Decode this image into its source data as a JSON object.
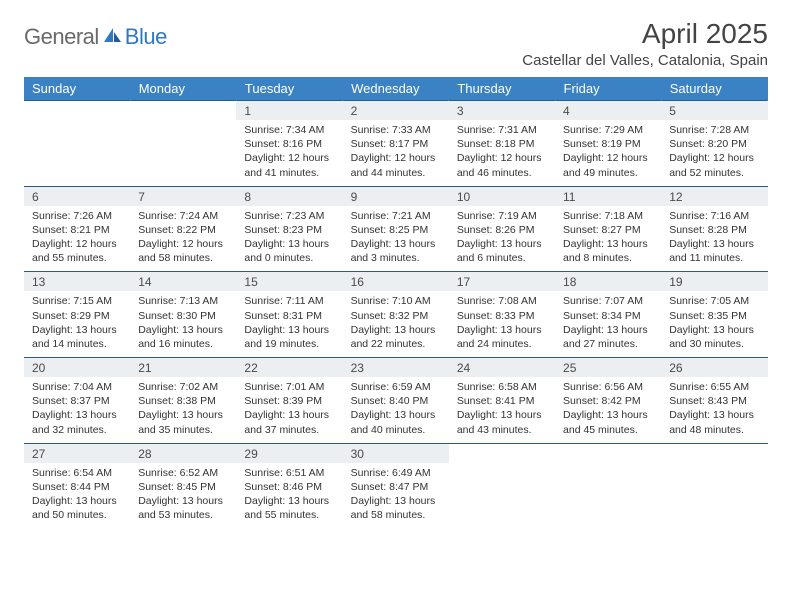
{
  "brand": {
    "part1": "General",
    "part2": "Blue"
  },
  "title": "April 2025",
  "location": "Castellar del Valles, Catalonia, Spain",
  "colors": {
    "header_bg": "#3b82c4",
    "header_text": "#ffffff",
    "daynum_bg": "#eceff1",
    "row_border": "#2a5a8a",
    "logo_gray": "#6a6a6a",
    "logo_blue": "#2f78c3"
  },
  "weekdays": [
    "Sunday",
    "Monday",
    "Tuesday",
    "Wednesday",
    "Thursday",
    "Friday",
    "Saturday"
  ],
  "weeks": [
    [
      null,
      null,
      {
        "n": "1",
        "sr": "Sunrise: 7:34 AM",
        "ss": "Sunset: 8:16 PM",
        "dl1": "Daylight: 12 hours",
        "dl2": "and 41 minutes."
      },
      {
        "n": "2",
        "sr": "Sunrise: 7:33 AM",
        "ss": "Sunset: 8:17 PM",
        "dl1": "Daylight: 12 hours",
        "dl2": "and 44 minutes."
      },
      {
        "n": "3",
        "sr": "Sunrise: 7:31 AM",
        "ss": "Sunset: 8:18 PM",
        "dl1": "Daylight: 12 hours",
        "dl2": "and 46 minutes."
      },
      {
        "n": "4",
        "sr": "Sunrise: 7:29 AM",
        "ss": "Sunset: 8:19 PM",
        "dl1": "Daylight: 12 hours",
        "dl2": "and 49 minutes."
      },
      {
        "n": "5",
        "sr": "Sunrise: 7:28 AM",
        "ss": "Sunset: 8:20 PM",
        "dl1": "Daylight: 12 hours",
        "dl2": "and 52 minutes."
      }
    ],
    [
      {
        "n": "6",
        "sr": "Sunrise: 7:26 AM",
        "ss": "Sunset: 8:21 PM",
        "dl1": "Daylight: 12 hours",
        "dl2": "and 55 minutes."
      },
      {
        "n": "7",
        "sr": "Sunrise: 7:24 AM",
        "ss": "Sunset: 8:22 PM",
        "dl1": "Daylight: 12 hours",
        "dl2": "and 58 minutes."
      },
      {
        "n": "8",
        "sr": "Sunrise: 7:23 AM",
        "ss": "Sunset: 8:23 PM",
        "dl1": "Daylight: 13 hours",
        "dl2": "and 0 minutes."
      },
      {
        "n": "9",
        "sr": "Sunrise: 7:21 AM",
        "ss": "Sunset: 8:25 PM",
        "dl1": "Daylight: 13 hours",
        "dl2": "and 3 minutes."
      },
      {
        "n": "10",
        "sr": "Sunrise: 7:19 AM",
        "ss": "Sunset: 8:26 PM",
        "dl1": "Daylight: 13 hours",
        "dl2": "and 6 minutes."
      },
      {
        "n": "11",
        "sr": "Sunrise: 7:18 AM",
        "ss": "Sunset: 8:27 PM",
        "dl1": "Daylight: 13 hours",
        "dl2": "and 8 minutes."
      },
      {
        "n": "12",
        "sr": "Sunrise: 7:16 AM",
        "ss": "Sunset: 8:28 PM",
        "dl1": "Daylight: 13 hours",
        "dl2": "and 11 minutes."
      }
    ],
    [
      {
        "n": "13",
        "sr": "Sunrise: 7:15 AM",
        "ss": "Sunset: 8:29 PM",
        "dl1": "Daylight: 13 hours",
        "dl2": "and 14 minutes."
      },
      {
        "n": "14",
        "sr": "Sunrise: 7:13 AM",
        "ss": "Sunset: 8:30 PM",
        "dl1": "Daylight: 13 hours",
        "dl2": "and 16 minutes."
      },
      {
        "n": "15",
        "sr": "Sunrise: 7:11 AM",
        "ss": "Sunset: 8:31 PM",
        "dl1": "Daylight: 13 hours",
        "dl2": "and 19 minutes."
      },
      {
        "n": "16",
        "sr": "Sunrise: 7:10 AM",
        "ss": "Sunset: 8:32 PM",
        "dl1": "Daylight: 13 hours",
        "dl2": "and 22 minutes."
      },
      {
        "n": "17",
        "sr": "Sunrise: 7:08 AM",
        "ss": "Sunset: 8:33 PM",
        "dl1": "Daylight: 13 hours",
        "dl2": "and 24 minutes."
      },
      {
        "n": "18",
        "sr": "Sunrise: 7:07 AM",
        "ss": "Sunset: 8:34 PM",
        "dl1": "Daylight: 13 hours",
        "dl2": "and 27 minutes."
      },
      {
        "n": "19",
        "sr": "Sunrise: 7:05 AM",
        "ss": "Sunset: 8:35 PM",
        "dl1": "Daylight: 13 hours",
        "dl2": "and 30 minutes."
      }
    ],
    [
      {
        "n": "20",
        "sr": "Sunrise: 7:04 AM",
        "ss": "Sunset: 8:37 PM",
        "dl1": "Daylight: 13 hours",
        "dl2": "and 32 minutes."
      },
      {
        "n": "21",
        "sr": "Sunrise: 7:02 AM",
        "ss": "Sunset: 8:38 PM",
        "dl1": "Daylight: 13 hours",
        "dl2": "and 35 minutes."
      },
      {
        "n": "22",
        "sr": "Sunrise: 7:01 AM",
        "ss": "Sunset: 8:39 PM",
        "dl1": "Daylight: 13 hours",
        "dl2": "and 37 minutes."
      },
      {
        "n": "23",
        "sr": "Sunrise: 6:59 AM",
        "ss": "Sunset: 8:40 PM",
        "dl1": "Daylight: 13 hours",
        "dl2": "and 40 minutes."
      },
      {
        "n": "24",
        "sr": "Sunrise: 6:58 AM",
        "ss": "Sunset: 8:41 PM",
        "dl1": "Daylight: 13 hours",
        "dl2": "and 43 minutes."
      },
      {
        "n": "25",
        "sr": "Sunrise: 6:56 AM",
        "ss": "Sunset: 8:42 PM",
        "dl1": "Daylight: 13 hours",
        "dl2": "and 45 minutes."
      },
      {
        "n": "26",
        "sr": "Sunrise: 6:55 AM",
        "ss": "Sunset: 8:43 PM",
        "dl1": "Daylight: 13 hours",
        "dl2": "and 48 minutes."
      }
    ],
    [
      {
        "n": "27",
        "sr": "Sunrise: 6:54 AM",
        "ss": "Sunset: 8:44 PM",
        "dl1": "Daylight: 13 hours",
        "dl2": "and 50 minutes."
      },
      {
        "n": "28",
        "sr": "Sunrise: 6:52 AM",
        "ss": "Sunset: 8:45 PM",
        "dl1": "Daylight: 13 hours",
        "dl2": "and 53 minutes."
      },
      {
        "n": "29",
        "sr": "Sunrise: 6:51 AM",
        "ss": "Sunset: 8:46 PM",
        "dl1": "Daylight: 13 hours",
        "dl2": "and 55 minutes."
      },
      {
        "n": "30",
        "sr": "Sunrise: 6:49 AM",
        "ss": "Sunset: 8:47 PM",
        "dl1": "Daylight: 13 hours",
        "dl2": "and 58 minutes."
      },
      null,
      null,
      null
    ]
  ]
}
